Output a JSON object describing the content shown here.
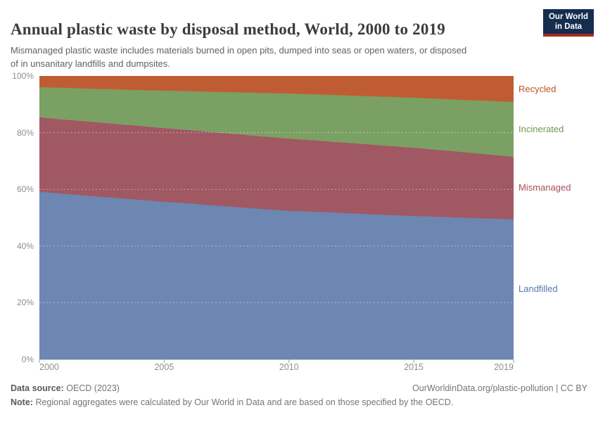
{
  "header": {
    "title": "Annual plastic waste by disposal method, World, 2000 to 2019",
    "subtitle": "Mismanaged plastic waste includes materials burned in open pits, dumped into seas or open waters, or disposed of in unsanitary landfills and dumpsites.",
    "logo": {
      "line1": "Our World",
      "line2": "in Data",
      "bg_color": "#152D4F",
      "accent_color": "#A72C1F"
    }
  },
  "footer": {
    "data_source_label": "Data source:",
    "data_source_value": "OECD (2023)",
    "link": "OurWorldinData.org/plastic-pollution | CC BY",
    "note_label": "Note:",
    "note_value": "Regional aggregates were calculated by Our World in Data and are based on those specified by the OECD."
  },
  "chart_data": {
    "type": "area",
    "stacked": true,
    "normalized_to_100pct": true,
    "title": "Annual plastic waste by disposal method, World, 2000 to 2019",
    "xlabel": "",
    "ylabel": "",
    "unit": "%",
    "xlim": [
      2000,
      2019
    ],
    "ylim": [
      0,
      100
    ],
    "grid": "dashed-horizontal",
    "legend_position": "right-edge-labels",
    "x": [
      2000,
      2001,
      2002,
      2003,
      2004,
      2005,
      2006,
      2007,
      2008,
      2009,
      2010,
      2011,
      2012,
      2013,
      2014,
      2015,
      2016,
      2017,
      2018,
      2019
    ],
    "x_ticks": [
      2000,
      2005,
      2010,
      2015,
      2019
    ],
    "y_ticks": [
      0,
      20,
      40,
      60,
      80,
      100
    ],
    "y_tick_suffix": "%",
    "series": [
      {
        "name": "Landfilled",
        "color": "#5776B3",
        "fill": "#6D87B2",
        "values": [
          59.1,
          58.4,
          57.7,
          57.0,
          56.3,
          55.6,
          55.0,
          54.3,
          53.7,
          53.0,
          52.4,
          52.1,
          51.7,
          51.3,
          50.9,
          50.6,
          50.3,
          50.0,
          49.7,
          49.4
        ]
      },
      {
        "name": "Mismanaged",
        "color": "#A34E5C",
        "fill": "#A05862",
        "values": [
          26.3,
          26.2,
          26.2,
          26.1,
          26.1,
          26.0,
          25.9,
          25.8,
          25.7,
          25.6,
          25.5,
          25.2,
          24.9,
          24.7,
          24.4,
          24.1,
          23.6,
          23.1,
          22.6,
          22.1
        ]
      },
      {
        "name": "Incinerated",
        "color": "#6A9A52",
        "fill": "#7BA063",
        "values": [
          10.6,
          11.2,
          11.6,
          12.2,
          12.6,
          13.2,
          13.7,
          14.3,
          14.8,
          15.4,
          15.9,
          16.2,
          16.6,
          16.9,
          17.3,
          17.6,
          18.0,
          18.4,
          18.9,
          19.3
        ]
      },
      {
        "name": "Recycled",
        "color": "#BC5226",
        "fill": "#C05C33",
        "values": [
          4.0,
          4.2,
          4.5,
          4.7,
          5.0,
          5.2,
          5.4,
          5.6,
          5.8,
          6.0,
          6.2,
          6.5,
          6.8,
          7.1,
          7.4,
          7.7,
          8.1,
          8.5,
          8.8,
          9.2
        ]
      }
    ]
  }
}
